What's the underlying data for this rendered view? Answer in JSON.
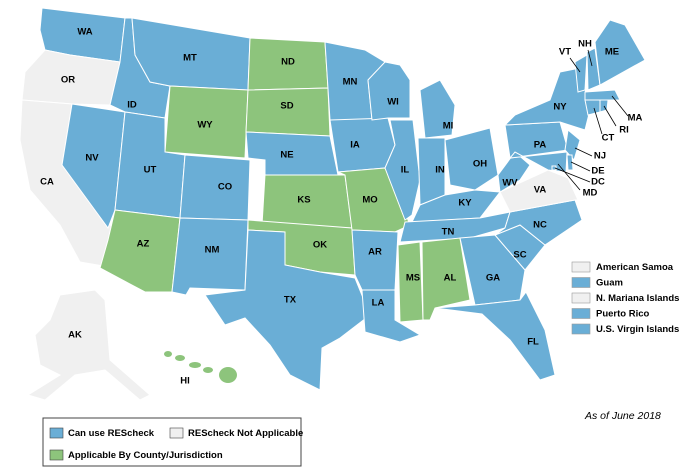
{
  "states": [
    {
      "label": "WA",
      "color": "#6aaed6"
    },
    {
      "label": "OR",
      "color": "#f0f0f0"
    },
    {
      "label": "CA",
      "color": "#f0f0f0"
    },
    {
      "label": "NV",
      "color": "#6aaed6"
    },
    {
      "label": "ID",
      "color": "#6aaed6"
    },
    {
      "label": "MT",
      "color": "#6aaed6"
    },
    {
      "label": "WY",
      "color": "#8dc47c"
    },
    {
      "label": "UT",
      "color": "#6aaed6"
    },
    {
      "label": "CO",
      "color": "#6aaed6"
    },
    {
      "label": "AZ",
      "color": "#8dc47c"
    },
    {
      "label": "NM",
      "color": "#6aaed6"
    },
    {
      "label": "ND",
      "color": "#8dc47c"
    },
    {
      "label": "SD",
      "color": "#8dc47c"
    },
    {
      "label": "NE",
      "color": "#6aaed6"
    },
    {
      "label": "KS",
      "color": "#8dc47c"
    },
    {
      "label": "OK",
      "color": "#8dc47c"
    },
    {
      "label": "TX",
      "color": "#6aaed6"
    },
    {
      "label": "MN",
      "color": "#6aaed6"
    },
    {
      "label": "IA",
      "color": "#6aaed6"
    },
    {
      "label": "MO",
      "color": "#8dc47c"
    },
    {
      "label": "AR",
      "color": "#6aaed6"
    },
    {
      "label": "LA",
      "color": "#6aaed6"
    },
    {
      "label": "WI",
      "color": "#6aaed6"
    },
    {
      "label": "IL",
      "color": "#6aaed6"
    },
    {
      "label": "MI",
      "color": "#6aaed6"
    },
    {
      "label": "IN",
      "color": "#6aaed6"
    },
    {
      "label": "OH",
      "color": "#6aaed6"
    },
    {
      "label": "KY",
      "color": "#6aaed6"
    },
    {
      "label": "TN",
      "color": "#6aaed6"
    },
    {
      "label": "MS",
      "color": "#8dc47c"
    },
    {
      "label": "AL",
      "color": "#8dc47c"
    },
    {
      "label": "GA",
      "color": "#6aaed6"
    },
    {
      "label": "FL",
      "color": "#6aaed6"
    },
    {
      "label": "SC",
      "color": "#6aaed6"
    },
    {
      "label": "NC",
      "color": "#6aaed6"
    },
    {
      "label": "VA",
      "color": "#f0f0f0"
    },
    {
      "label": "WV",
      "color": "#6aaed6"
    },
    {
      "label": "PA",
      "color": "#6aaed6"
    },
    {
      "label": "NY",
      "color": "#6aaed6"
    },
    {
      "label": "MD",
      "color": "#6aaed6"
    },
    {
      "label": "NJ",
      "color": "#6aaed6"
    },
    {
      "label": "DE",
      "color": "#6aaed6"
    },
    {
      "label": "DC",
      "color": "#6aaed6"
    },
    {
      "label": "VT",
      "color": "#6aaed6"
    },
    {
      "label": "NH",
      "color": "#6aaed6"
    },
    {
      "label": "ME",
      "color": "#6aaed6"
    },
    {
      "label": "MA",
      "color": "#6aaed6"
    },
    {
      "label": "CT",
      "color": "#6aaed6"
    },
    {
      "label": "RI",
      "color": "#6aaed6"
    },
    {
      "label": "AK",
      "color": "#f0f0f0"
    },
    {
      "label": "HI",
      "color": "#8dc47c"
    }
  ],
  "territories": [
    {
      "label": "American Samoa",
      "color": "#f0f0f0"
    },
    {
      "label": "Guam",
      "color": "#6aaed6"
    },
    {
      "label": "N. Mariana Islands",
      "color": "#f0f0f0"
    },
    {
      "label": "Puerto Rico",
      "color": "#6aaed6"
    },
    {
      "label": "U.S. Virgin Islands",
      "color": "#6aaed6"
    }
  ],
  "legend": [
    {
      "label": "Can use REScheck",
      "color": "#6aaed6"
    },
    {
      "label": "REScheck Not Applicable",
      "color": "#f0f0f0"
    },
    {
      "label": "Applicable By County/Jurisdiction",
      "color": "#8dc47c"
    }
  ],
  "note": "As of June 2018"
}
